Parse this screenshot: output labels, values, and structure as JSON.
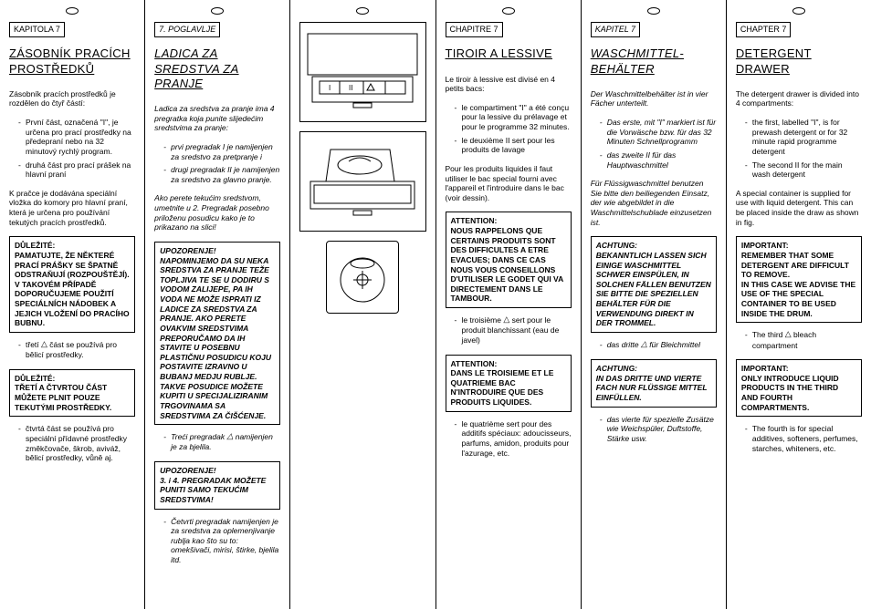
{
  "columns": [
    {
      "lang": "cs",
      "chapter": "KAPITOLA 7",
      "title": "ZÁSOBNÍK PRACÍCH PROSTŘEDKŮ",
      "intro": "Zásobník pracích prostředků je rozdělen do čtyř částí:",
      "bullets1": [
        "První část, označená \"I\", je určena pro prací prostředky na předepraní nebo na 32 minutový rychlý program.",
        "druhá část pro prací prášek na hlavní praní"
      ],
      "para2": "K pračce je dodávána speciální vložka do komory pro hlavní praní, která je určena pro používání tekutých pracích prostředků.",
      "box1": "DŮLEŽITÉ:\nPAMATUJTE, ŽE NĚKTERÉ PRACÍ PRÁŠKY SE ŠPATNĚ ODSTRAŇUJÍ (ROZPOUŠTĚJÍ).\nV TAKOVÉM PŘÍPADĚ DOPORUČUJEME POUŽITÍ SPECIÁLNÍCH NÁDOBEK A JEJICH VLOŽENÍ DO PRACÍHO BUBNU.",
      "bullet_mid": "třetí △ část se používá pro bělicí prostředky.",
      "box2": "DŮLEŽITÉ:\nTŘETÍ A ČTVRTOU ČÁST MŮŽETE PLNIT POUZE TEKUTÝMI PROSTŘEDKY.",
      "bullet_end": "čtvrtá část se používá pro speciální přídavné prostředky\nzměkčovače, škrob, aviváž, bělicí prostředky, vůně aj.",
      "styling": {
        "italic": false
      }
    },
    {
      "lang": "hr",
      "chapter": "7. POGLAVLJE",
      "title": "LADICA ZA SREDSTVA ZA PRANJE",
      "intro": "Ladica za sredstva za pranje ima 4 pregratka koja punite slijedećim sredstvima za pranje:",
      "bullets1": [
        "prvi pregradak I je namijenjen za sredstvo za pretpranje i",
        "drugi pregradak II je namijenjen za sredstvo za glavno pranje."
      ],
      "para2": "Ako perete tekućim sredstvom, umetnite u 2. Pregradak posebno priloženu posudicu kako je to prikazano na slici!",
      "box1": "UPOZORENJE!\nNAPOMINJEMO DA SU NEKA SREDSTVA ZA PRANJE TEŽE TOPLJIVA TE SE U DODIRU S VODOM ZALIJEPE, PA IH VODA NE MOŽE ISPRATI IZ LADICE ZA SREDSTVA ZA PRANJE. AKO PERETE OVAKVIM SREDSTVIMA PREPORUČAMO DA IH STAVITE U POSEBNU PLASTIČNU POSUDICU KOJU POSTAVITE IZRAVNO U BUBANJ MEDJU RUBLJE. TAKVE POSUDICE MOŽETE KUPITI U SPECIJALIZIRANIM TRGOVINAMA SA SREDSTVIMA ZA ČIŠĆENJE.",
      "bullet_mid": "Treći pregradak △ namijenjen je za bjelila.",
      "box2": "UPOZORENJE!\n3. i 4. PREGRADAK MOŽETE PUNITI SAMO TEKUĆIM SREDSTVIMA!",
      "bullet_end": "Četvrti pregradak namijenjen je za sredstva za oplemenjivanje rublja kao što su to: omekšivači, mirisi, štirke, bjelila itd.",
      "styling": {
        "italic": true
      }
    },
    {
      "lang": "illus",
      "chapter": "",
      "title": "",
      "styling": {}
    },
    {
      "lang": "fr",
      "chapter": "CHAPITRE 7",
      "title": "TIROIR A LESSIVE",
      "intro": "Le tiroir à lessive est divisé en 4 petits bacs:",
      "bullets1": [
        "le compartiment \"I\" a été conçu pour la lessive du prélavage et pour le programme 32 minutes.",
        "le deuxième II sert pour les produits de lavage"
      ],
      "para2": "Pour les produits liquides il faut utiliser le bac special fourni avec l'appareil et l'introduire dans le bac (voir dessin).",
      "box1": "ATTENTION:\nNOUS RAPPELONS QUE CERTAINS PRODUITS SONT DES DIFFICULTES A ETRE EVACUES; DANS CE CAS NOUS VOUS CONSEILLONS D'UTILISER LE GODET QUI VA DIRECTEMENT DANS LE TAMBOUR.",
      "bullet_mid": "le troisième △ sert pour le produit blanchissant (eau de javel)",
      "box2": "ATTENTION:\nDANS LE TROISIEME ET LE QUATRIEME BAC N'INTRODUIRE QUE DES PRODUITS LIQUIDES.",
      "bullet_end": "le quatrième     sert pour des additifs spéciaux: adoucisseurs, parfums, amidon, produits pour l'azurage, etc.",
      "styling": {
        "italic": false
      }
    },
    {
      "lang": "de",
      "chapter": "KAPITEL 7",
      "title": "WASCHMITTEL-BEHÄLTER",
      "intro": "Der Waschmittelbehälter ist in vier Fächer unterteilt.",
      "bullets1": [
        "Das erste, mit \"I\" markiert ist für die Vorwäsche bzw. für das 32 Minuten Schnellprogramm",
        "das zweite II für das Hauptwaschmittel"
      ],
      "para2": "Für Flüssigwaschmittel benutzen Sie bitte den beiliegenden Einsatz, der wie abgebildet in die Waschmittelschublade einzusetzen ist.",
      "box1": "ACHTUNG:\nBEKANNTLICH LASSEN SICH EINIGE WASCHMITTEL SCHWER EINSPÜLEN, IN SOLCHEN FÄLLEN BENUTZEN SIE BITTE DIE SPEZIELLEN BEHÄLTER FÜR DIE VERWENDUNG DIREKT IN DER TROMMEL.",
      "bullet_mid": "das dritte △ für Bleichmittel",
      "box2": "ACHTUNG:\nIN DAS DRITTE UND VIERTE FACH NUR FLÜSSIGE MITTEL EINFÜLLEN.",
      "bullet_end": "das vierte     für spezielle Zusätze wie Weichspüler, Duftstoffe, Stärke usw.",
      "styling": {
        "italic": true
      }
    },
    {
      "lang": "en",
      "chapter": "CHAPTER 7",
      "title": "DETERGENT DRAWER",
      "intro": "The detergent drawer is divided into 4 compartments:",
      "bullets1": [
        "the first, labelled \"I\", is for prewash detergent or for 32 minute rapid programme detergent",
        "The second II for the main wash detergent"
      ],
      "para2": "A special container is supplied for use with liquid detergent. This can be placed inside the draw as shown in fig.",
      "box1": "IMPORTANT:\nREMEMBER THAT SOME DETERGENT ARE DIFFICULT TO REMOVE.\nIN THIS CASE WE ADVISE THE USE OF THE SPECIAL CONTAINER TO BE USED INSIDE THE DRUM.",
      "bullet_mid": "The third △ bleach compartment",
      "box2": "IMPORTANT:\nONLY INTRODUCE LIQUID PRODUCTS IN THE THIRD AND FOURTH COMPARTMENTS.",
      "bullet_end": "The fourth     is for special additives, softeners, perfumes, starches, whiteners, etc.",
      "styling": {
        "italic": false
      }
    }
  ],
  "colors": {
    "border": "#000000",
    "background": "#ffffff",
    "text": "#000000"
  },
  "illustration_labels": {
    "i": "I",
    "ii": "II"
  }
}
